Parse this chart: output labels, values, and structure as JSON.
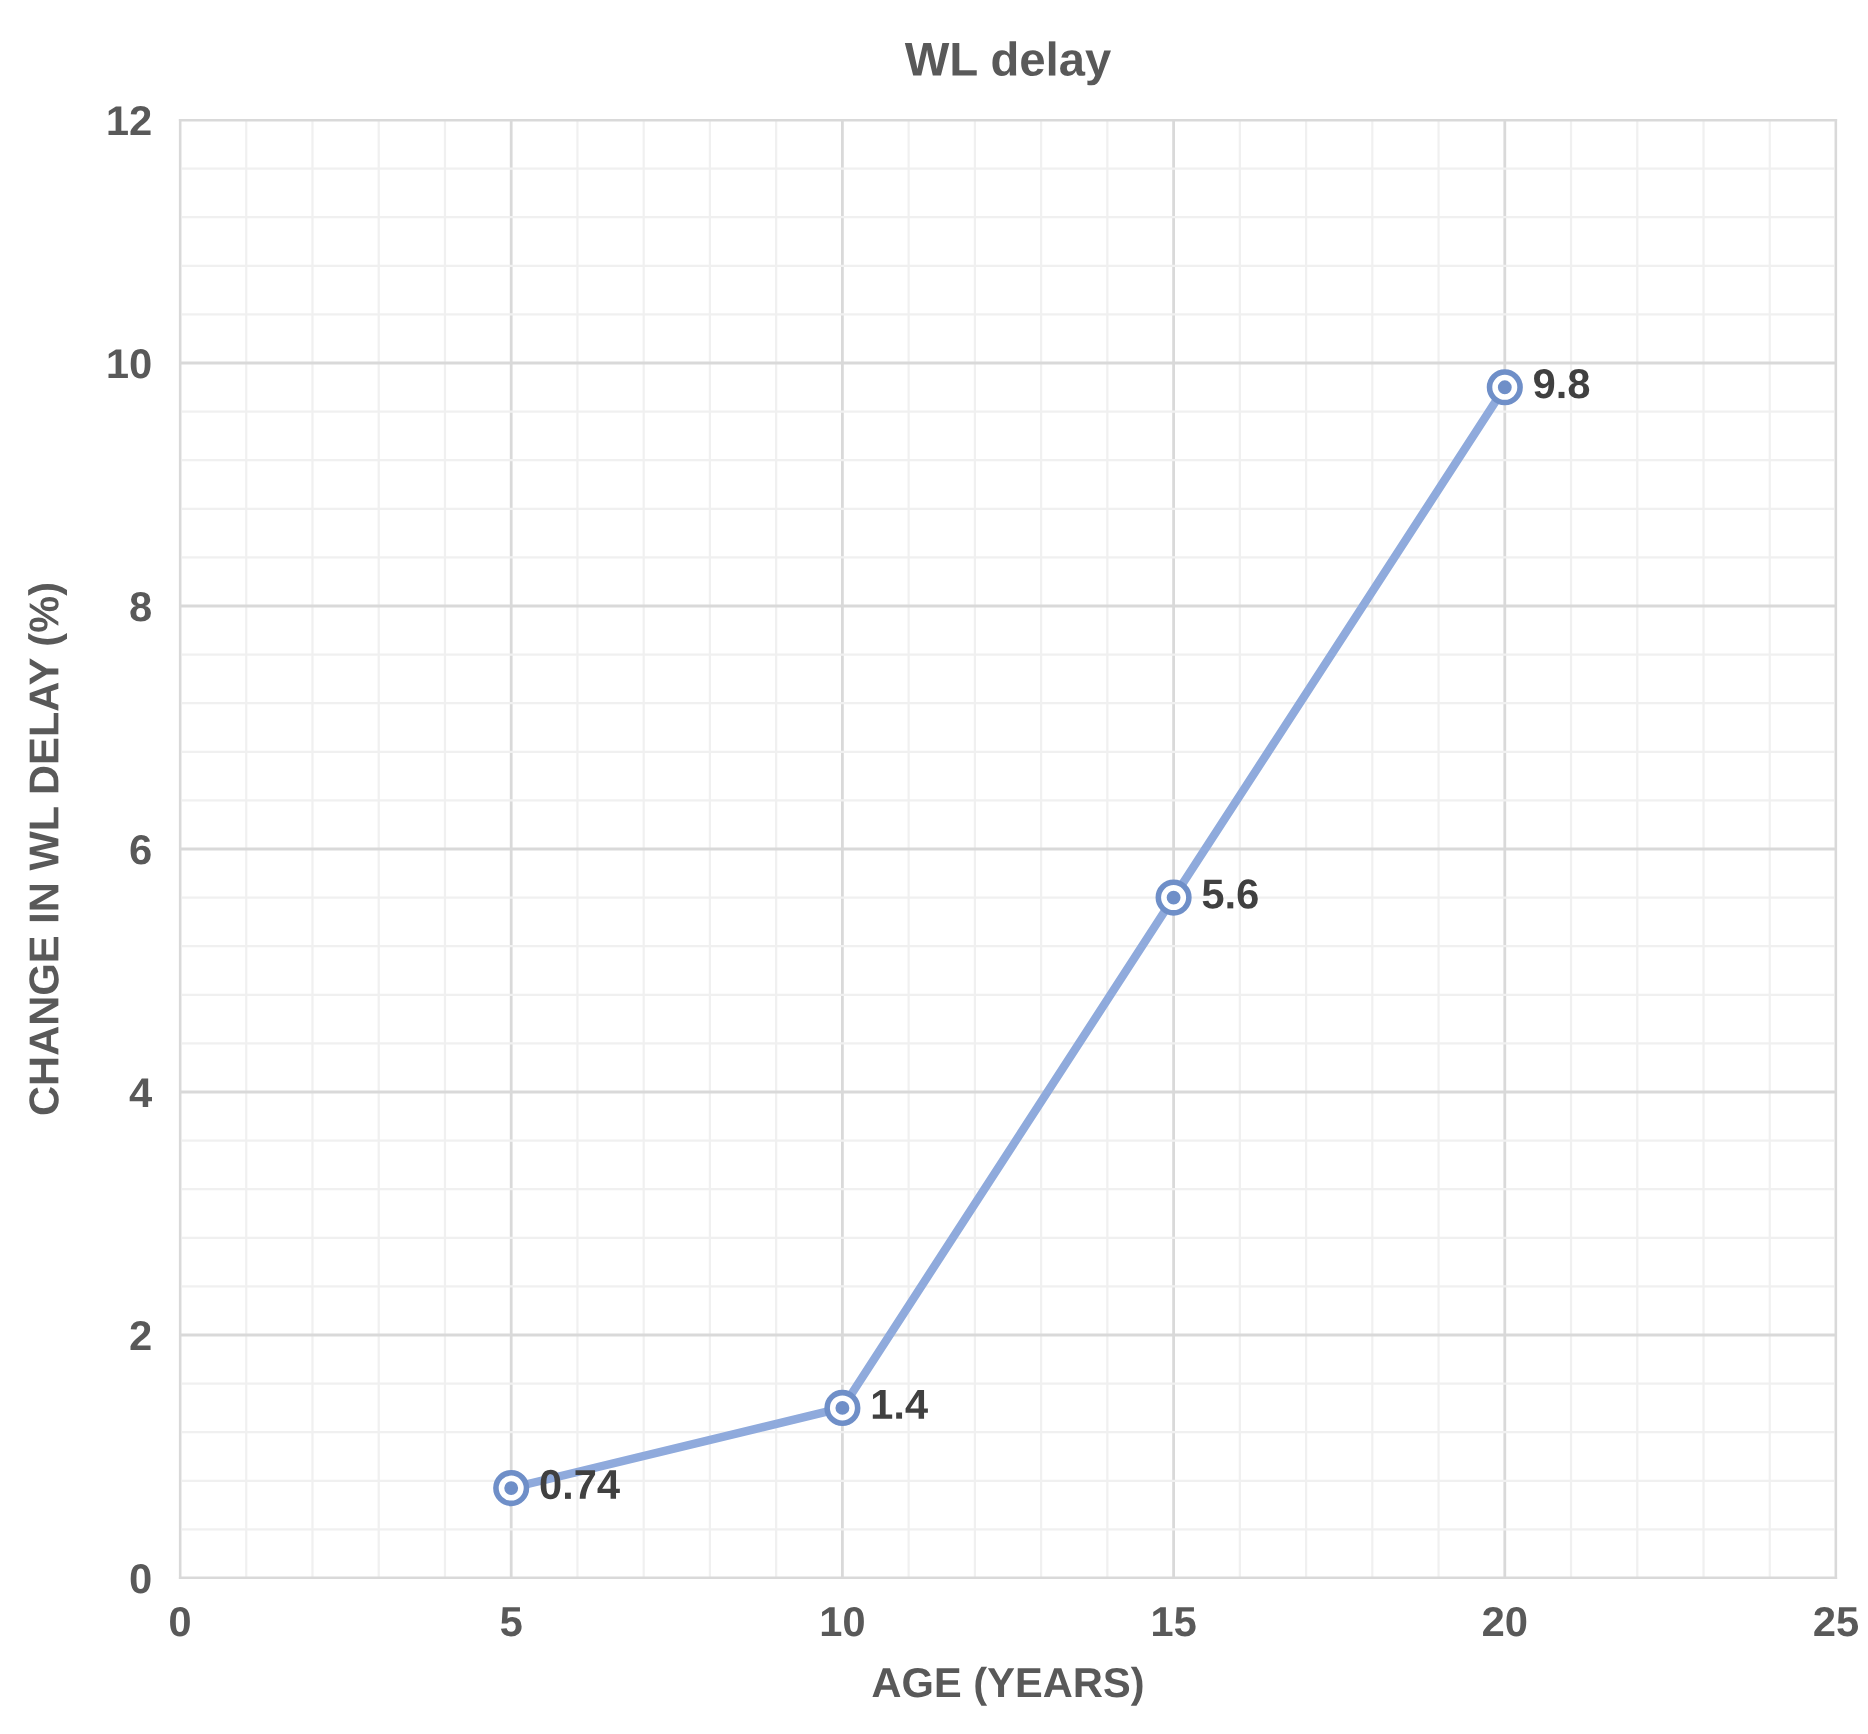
{
  "chart_data": {
    "type": "line",
    "title": "WL delay",
    "xlabel": "AGE (YEARS)",
    "ylabel": "CHANGE IN WL DELAY (%)",
    "x": [
      5,
      10,
      15,
      20
    ],
    "series": [
      {
        "color": "#8faadc",
        "values": [
          0.74,
          1.4,
          5.6,
          9.8
        ]
      }
    ],
    "xlim": [
      0,
      25
    ],
    "xticks": [
      0,
      5,
      10,
      15,
      20,
      25
    ],
    "ylim": [
      0,
      12
    ],
    "yticks": [
      0,
      2,
      4,
      6,
      8,
      10,
      12
    ],
    "grid": true,
    "marker": "circle",
    "line_style": "solid",
    "data_labels": true
  }
}
